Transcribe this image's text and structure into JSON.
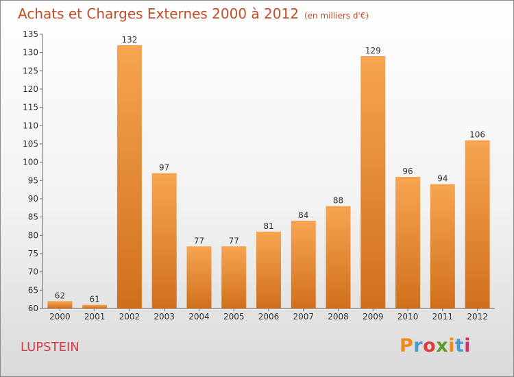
{
  "header": {
    "title": "Achats et Charges Externes 2000 à 2012",
    "unit": "(en milliers d'€)"
  },
  "footer": {
    "place": "LUPSTEIN",
    "logo": "Proxiti",
    "logo_colors": [
      "#f08a1c",
      "#4a9ad4",
      "#e23a3a",
      "#5a9a2a",
      "#f08a1c",
      "#4a9ad4",
      "#d62f6f"
    ]
  },
  "colors": {
    "bar_top": "#f7a552",
    "bar_bottom": "#d06f1b",
    "title": "#c24d27",
    "place": "#d93b4a"
  },
  "chart_data": {
    "type": "bar",
    "categories": [
      "2000",
      "2001",
      "2002",
      "2003",
      "2004",
      "2005",
      "2006",
      "2007",
      "2008",
      "2009",
      "2010",
      "2011",
      "2012"
    ],
    "values": [
      62,
      61,
      132,
      97,
      77,
      77,
      81,
      84,
      88,
      129,
      96,
      94,
      106
    ],
    "ylim": [
      60,
      135
    ],
    "yticks": [
      60,
      65,
      70,
      75,
      80,
      85,
      90,
      95,
      100,
      105,
      110,
      115,
      120,
      125,
      130,
      135
    ],
    "grid": false,
    "title": "Achats et Charges Externes 2000 à 2012",
    "xlabel": "",
    "ylabel": ""
  }
}
